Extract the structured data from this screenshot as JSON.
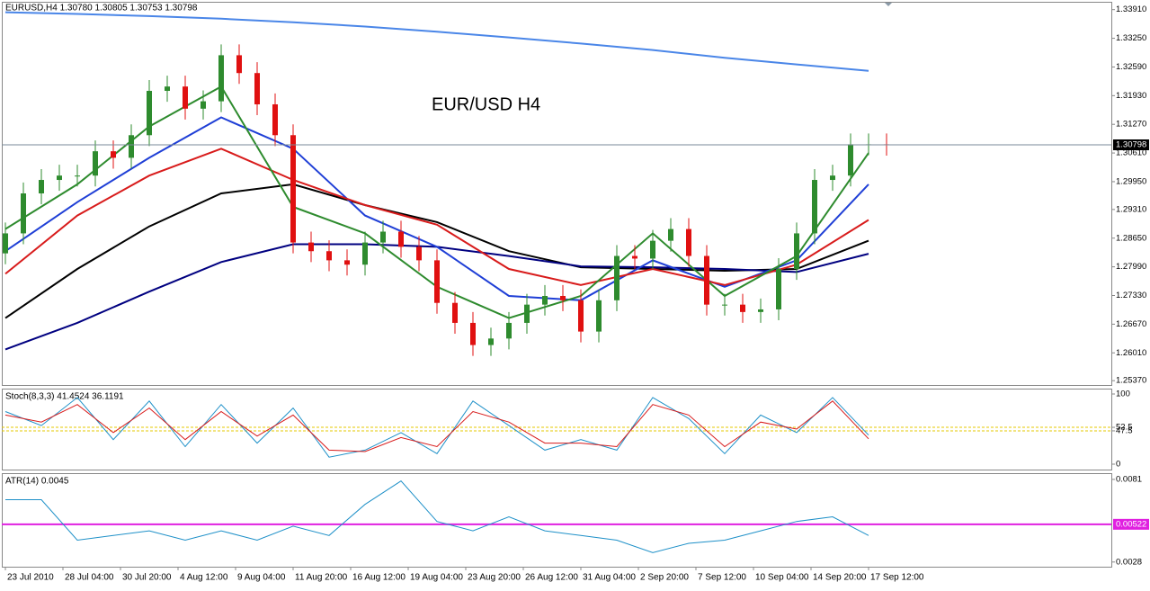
{
  "chart_data": [
    {
      "type": "candlestick",
      "title": "EURUSD,H4  1.30780 1.30805 1.30753 1.30798",
      "annotation": "EUR/USD H4",
      "up_color": "#2e8b2e",
      "down_color": "#e01010",
      "x": [
        0,
        5,
        10,
        15,
        20,
        25,
        30,
        35,
        40,
        45,
        50,
        55,
        60,
        65,
        70,
        75,
        80,
        85,
        90,
        95,
        100,
        105,
        110,
        115,
        120,
        125,
        130,
        135,
        140,
        145,
        150,
        155,
        160,
        165,
        170,
        175,
        180,
        185,
        190,
        195,
        200,
        205,
        210,
        215,
        220,
        225,
        230,
        235,
        240,
        245
      ],
      "open": [
        1.283,
        1.2876,
        1.2968,
        1.2999,
        1.3009,
        1.3009,
        1.3065,
        1.305,
        1.3102,
        1.3204,
        1.3214,
        1.3163,
        1.318,
        1.3286,
        1.3245,
        1.3173,
        1.3102,
        1.2855,
        1.2835,
        1.2814,
        1.2804,
        1.2855,
        1.288,
        1.2845,
        1.2814,
        1.2716,
        1.267,
        1.2619,
        1.2634,
        1.267,
        1.2712,
        1.2732,
        1.2722,
        1.265,
        1.2722,
        1.2824,
        1.2818,
        1.2859,
        1.2886,
        1.2824,
        1.2712,
        1.2712,
        1.2695,
        1.2701,
        1.2794,
        1.2876,
        1.2999,
        1.3009,
        1.3081,
        1.3081
      ],
      "high": [
        1.2901,
        1.2993,
        1.3024,
        1.3034,
        1.3034,
        1.309,
        1.309,
        1.3127,
        1.3229,
        1.3239,
        1.3239,
        1.3205,
        1.3311,
        1.3311,
        1.327,
        1.3198,
        1.3127,
        1.288,
        1.286,
        1.2839,
        1.288,
        1.2905,
        1.2905,
        1.287,
        1.2839,
        1.2741,
        1.2695,
        1.2659,
        1.2695,
        1.2737,
        1.2757,
        1.2757,
        1.2747,
        1.2747,
        1.2849,
        1.2849,
        1.2884,
        1.2911,
        1.2911,
        1.2849,
        1.2737,
        1.2737,
        1.2726,
        1.2819,
        1.2901,
        1.3024,
        1.3034,
        1.3106,
        1.3106,
        1.3106
      ],
      "low": [
        1.2805,
        1.2851,
        1.2943,
        1.2974,
        1.2984,
        1.2984,
        1.3025,
        1.3025,
        1.3077,
        1.3179,
        1.3138,
        1.3138,
        1.3155,
        1.322,
        1.3148,
        1.3077,
        1.283,
        1.281,
        1.2789,
        1.2779,
        1.2779,
        1.283,
        1.282,
        1.2789,
        1.2691,
        1.2645,
        1.2594,
        1.2594,
        1.2609,
        1.2645,
        1.2687,
        1.2697,
        1.2625,
        1.2625,
        1.2697,
        1.2793,
        1.2793,
        1.2834,
        1.2799,
        1.2687,
        1.2687,
        1.267,
        1.267,
        1.2676,
        1.2769,
        1.2851,
        1.2974,
        1.2984,
        1.3056,
        1.3055
      ],
      "close": [
        1.2876,
        1.2968,
        1.2999,
        1.3009,
        1.3009,
        1.3065,
        1.305,
        1.3102,
        1.3204,
        1.3214,
        1.3163,
        1.318,
        1.3286,
        1.3245,
        1.3173,
        1.3102,
        1.2855,
        1.2835,
        1.2814,
        1.2804,
        1.2855,
        1.288,
        1.2845,
        1.2814,
        1.2716,
        1.267,
        1.2619,
        1.2634,
        1.267,
        1.2712,
        1.2732,
        1.2722,
        1.265,
        1.2722,
        1.2824,
        1.2818,
        1.2859,
        1.2886,
        1.2824,
        1.2712,
        1.2712,
        1.2695,
        1.2701,
        1.2794,
        1.2876,
        1.2999,
        1.3009,
        1.3081,
        1.3081,
        1.30798
      ],
      "series": [
        {
          "color": "#4a86e8",
          "x": [
            0,
            20,
            40,
            60,
            80,
            100,
            120,
            140,
            160,
            180,
            200,
            220,
            240
          ],
          "values": [
            1.3385,
            1.3381,
            1.3376,
            1.337,
            1.3362,
            1.3352,
            1.334,
            1.3327,
            1.3313,
            1.3298,
            1.328,
            1.3265,
            1.325
          ]
        },
        {
          "color": "#000000",
          "x": [
            0,
            20,
            40,
            60,
            80,
            100,
            120,
            140,
            160,
            180,
            200,
            220,
            240
          ],
          "values": [
            1.2681,
            1.2794,
            1.2892,
            1.2968,
            1.2989,
            1.2941,
            1.2902,
            1.2835,
            1.2798,
            1.2794,
            1.279,
            1.2794,
            1.2859
          ]
        },
        {
          "color": "#000080",
          "x": [
            0,
            20,
            40,
            60,
            80,
            100,
            120,
            140,
            160,
            180,
            200,
            220,
            240
          ],
          "values": [
            1.2609,
            1.267,
            1.2742,
            1.281,
            1.2851,
            1.2851,
            1.2845,
            1.2824,
            1.28,
            1.2798,
            1.2794,
            1.2787,
            1.2829
          ]
        },
        {
          "color": "#1f3fd6",
          "x": [
            0,
            20,
            40,
            60,
            80,
            100,
            120,
            140,
            160,
            180,
            200,
            220,
            240
          ],
          "values": [
            1.2835,
            1.2948,
            1.305,
            1.3143,
            1.3071,
            1.2917,
            1.2845,
            1.2732,
            1.2722,
            1.2814,
            1.2753,
            1.2814,
            1.2989
          ]
        },
        {
          "color": "#d81b1b",
          "x": [
            0,
            20,
            40,
            60,
            80,
            100,
            120,
            140,
            160,
            180,
            200,
            220,
            240
          ],
          "values": [
            1.2783,
            1.2917,
            1.3009,
            1.3071,
            1.2999,
            1.2941,
            1.2896,
            1.2794,
            1.2757,
            1.2794,
            1.2757,
            1.2804,
            1.2907
          ]
        },
        {
          "color": "#2e8b2e",
          "x": [
            0,
            20,
            40,
            60,
            80,
            100,
            120,
            140,
            160,
            180,
            200,
            220,
            240
          ],
          "values": [
            1.2886,
            1.2989,
            1.3122,
            1.3214,
            1.2937,
            1.2876,
            1.2753,
            1.2681,
            1.2732,
            1.2876,
            1.2732,
            1.2824,
            1.3061
          ]
        }
      ],
      "last_price": 1.30798,
      "xlim": [
        -1,
        307.5
      ],
      "xticks": [
        {
          "value": 0,
          "label": "23 Jul 2010"
        },
        {
          "value": 16,
          "label": "28 Jul 04:00"
        },
        {
          "value": 32,
          "label": "30 Jul 20:00"
        },
        {
          "value": 48,
          "label": "4 Aug 12:00"
        },
        {
          "value": 64,
          "label": "9 Aug 04:00"
        },
        {
          "value": 80,
          "label": "11 Aug 20:00"
        },
        {
          "value": 96,
          "label": "16 Aug 12:00"
        },
        {
          "value": 112,
          "label": "19 Aug 04:00"
        },
        {
          "value": 128,
          "label": "23 Aug 20:00"
        },
        {
          "value": 144,
          "label": "26 Aug 12:00"
        },
        {
          "value": 160,
          "label": "31 Aug 04:00"
        },
        {
          "value": 176,
          "label": "2 Sep 20:00"
        },
        {
          "value": 192,
          "label": "7 Sep 12:00"
        },
        {
          "value": 208,
          "label": "10 Sep 04:00"
        },
        {
          "value": 224,
          "label": "14 Sep 20:00"
        },
        {
          "value": 240,
          "label": "17 Sep 12:00"
        }
      ],
      "ylim": [
        1.2527,
        1.3409
      ],
      "yticks": [
        {
          "value": 1.3391,
          "label": "1.33910"
        },
        {
          "value": 1.3325,
          "label": "1.33250"
        },
        {
          "value": 1.3259,
          "label": "1.32590"
        },
        {
          "value": 1.3193,
          "label": "1.31930"
        },
        {
          "value": 1.3127,
          "label": "1.31270"
        },
        {
          "value": 1.3061,
          "label": "1.30610"
        },
        {
          "value": 1.2995,
          "label": "1.29950"
        },
        {
          "value": 1.2931,
          "label": "1.29310"
        },
        {
          "value": 1.2865,
          "label": "1.28650"
        },
        {
          "value": 1.2799,
          "label": "1.27990"
        },
        {
          "value": 1.2733,
          "label": "1.27330"
        },
        {
          "value": 1.2667,
          "label": "1.26670"
        },
        {
          "value": 1.2601,
          "label": "1.26010"
        },
        {
          "value": 1.2537,
          "label": "1.25370"
        }
      ]
    },
    {
      "type": "line",
      "title": "Stoch(8,3,3) 41.4524 36.1191",
      "levels": [
        52.5,
        47.5
      ],
      "level_color": "#e6c800",
      "series": [
        {
          "color": "#1e90c8",
          "x": [
            0,
            10,
            20,
            30,
            40,
            50,
            60,
            70,
            80,
            90,
            100,
            110,
            120,
            130,
            140,
            150,
            160,
            170,
            180,
            190,
            200,
            210,
            220,
            230,
            240
          ],
          "values": [
            75,
            55,
            95,
            35,
            90,
            25,
            85,
            30,
            80,
            10,
            20,
            45,
            15,
            90,
            55,
            20,
            35,
            20,
            95,
            65,
            15,
            70,
            45,
            95,
            41.4524
          ]
        },
        {
          "color": "#d81b1b",
          "x": [
            0,
            10,
            20,
            30,
            40,
            50,
            60,
            70,
            80,
            90,
            100,
            110,
            120,
            130,
            140,
            150,
            160,
            170,
            180,
            190,
            200,
            210,
            220,
            230,
            240
          ],
          "values": [
            70,
            60,
            85,
            45,
            80,
            35,
            75,
            40,
            70,
            20,
            18,
            38,
            25,
            75,
            60,
            30,
            30,
            25,
            85,
            70,
            25,
            60,
            50,
            90,
            36.1191
          ]
        }
      ],
      "xlim": [
        -1,
        307.5
      ],
      "ylim": [
        -7.7,
        107.7
      ],
      "yticks": [
        0,
        47.5,
        52.5,
        100
      ]
    },
    {
      "type": "line",
      "title": "ATR(14) 0.0045",
      "level": 0.00522,
      "level_color": "#e020e0",
      "series": [
        {
          "color": "#1e90c8",
          "x": [
            0,
            10,
            20,
            30,
            40,
            50,
            60,
            70,
            80,
            90,
            100,
            110,
            120,
            130,
            140,
            150,
            160,
            170,
            180,
            190,
            200,
            210,
            220,
            230,
            240
          ],
          "values": [
            0.0068,
            0.0068,
            0.0042,
            0.0045,
            0.0048,
            0.0042,
            0.0048,
            0.0042,
            0.0051,
            0.0045,
            0.0065,
            0.008,
            0.0054,
            0.0048,
            0.0057,
            0.0048,
            0.0045,
            0.0042,
            0.0034,
            0.004,
            0.0042,
            0.0048,
            0.0054,
            0.0057,
            0.0045
          ]
        }
      ],
      "xlim": [
        -1,
        307.5
      ],
      "ylim": [
        0.0025,
        0.0085
      ],
      "yticks": [
        0.0028,
        0.0081
      ]
    }
  ]
}
